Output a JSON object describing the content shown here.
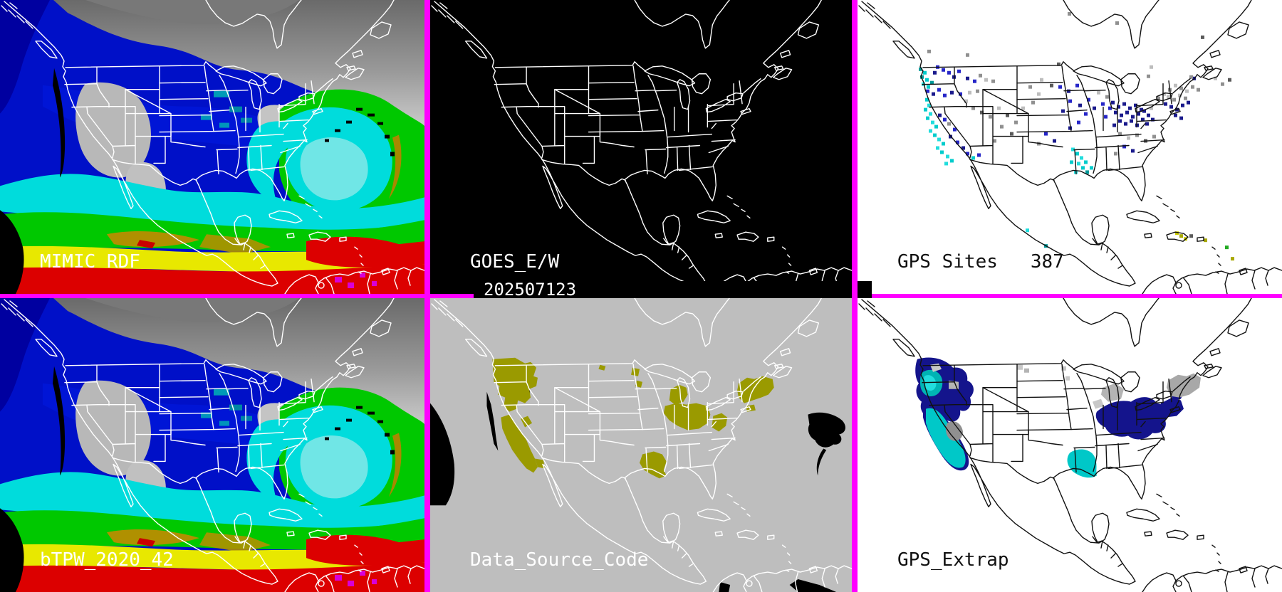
{
  "panels": {
    "mimic": {
      "label": "MIMIC RDF"
    },
    "goes": {
      "label": "GOES_E/W",
      "timestamp": "202507123"
    },
    "gps_sites": {
      "label": "GPS Sites",
      "count": "387"
    },
    "btpw": {
      "label": "bTPW_2020_42"
    },
    "data_source": {
      "label": "Data_Source_Code"
    },
    "gps_extrap": {
      "label": "GPS_Extrap"
    }
  },
  "colors": {
    "divider_magenta": "#ff00ff",
    "goes_background": "#000000",
    "ds_background": "#bebebe",
    "ds_data_fill": "#9a9a00",
    "tpw_deep_blue": "#0010c8",
    "tpw_cyan": "#00dcdc",
    "tpw_green": "#00c800",
    "tpw_yellow": "#e8e800",
    "tpw_red": "#dc0000",
    "tpw_olive": "#a88800",
    "tpw_magenta": "#d800d8",
    "map_line_light": "#ffffff",
    "map_line_dark": "#111111"
  },
  "gps_palette": {
    "g": "#909090",
    "lg": "#bdbdbd",
    "dg": "#5a5a5a",
    "n": "#1a1a8c",
    "b": "#2626c8",
    "c": "#00cccc",
    "bc": "#22dddd",
    "t": "#009999",
    "y": "#cccc00",
    "dy": "#a8a800",
    "gr": "#22aa22"
  },
  "gps_dots": [
    [
      295,
      17,
      "g"
    ],
    [
      482,
      50,
      "dg"
    ],
    [
      98,
      70,
      "g"
    ],
    [
      152,
      75,
      "g"
    ],
    [
      280,
      88,
      "dg"
    ],
    [
      406,
      105,
      "g"
    ],
    [
      470,
      108,
      "n"
    ],
    [
      362,
      30,
      "g"
    ],
    [
      410,
      92,
      "lg"
    ],
    [
      466,
      106,
      "g"
    ],
    [
      500,
      108,
      "lg"
    ],
    [
      510,
      116,
      "g"
    ],
    [
      520,
      110,
      "dg"
    ],
    [
      86,
      95,
      "t"
    ],
    [
      92,
      100,
      "c"
    ],
    [
      88,
      106,
      "t"
    ],
    [
      95,
      110,
      "c"
    ],
    [
      90,
      116,
      "bc"
    ],
    [
      97,
      120,
      "c"
    ],
    [
      102,
      114,
      "t"
    ],
    [
      110,
      92,
      "b"
    ],
    [
      118,
      96,
      "b"
    ],
    [
      106,
      100,
      "n"
    ],
    [
      126,
      100,
      "b"
    ],
    [
      133,
      106,
      "n"
    ],
    [
      140,
      98,
      "b"
    ],
    [
      152,
      108,
      "n"
    ],
    [
      162,
      112,
      "b"
    ],
    [
      170,
      104,
      "g"
    ],
    [
      178,
      110,
      "lg"
    ],
    [
      188,
      112,
      "g"
    ],
    [
      96,
      126,
      "b"
    ],
    [
      104,
      130,
      "n"
    ],
    [
      112,
      124,
      "b"
    ],
    [
      120,
      132,
      "b"
    ],
    [
      130,
      128,
      "n"
    ],
    [
      142,
      130,
      "b"
    ],
    [
      155,
      128,
      "lg"
    ],
    [
      166,
      126,
      "g"
    ],
    [
      95,
      138,
      "c"
    ],
    [
      98,
      146,
      "bc"
    ],
    [
      93,
      152,
      "c"
    ],
    [
      100,
      158,
      "bc"
    ],
    [
      96,
      164,
      "c"
    ],
    [
      103,
      170,
      "bc"
    ],
    [
      108,
      176,
      "c"
    ],
    [
      100,
      182,
      "bc"
    ],
    [
      106,
      188,
      "c"
    ],
    [
      112,
      194,
      "bc"
    ],
    [
      118,
      200,
      "c"
    ],
    [
      110,
      206,
      "bc"
    ],
    [
      116,
      212,
      "c"
    ],
    [
      124,
      218,
      "bc"
    ],
    [
      130,
      224,
      "c"
    ],
    [
      122,
      228,
      "bc"
    ],
    [
      113,
      160,
      "n"
    ],
    [
      120,
      166,
      "b"
    ],
    [
      126,
      172,
      "g"
    ],
    [
      134,
      180,
      "b"
    ],
    [
      128,
      190,
      "n"
    ],
    [
      138,
      198,
      "b"
    ],
    [
      146,
      206,
      "n"
    ],
    [
      152,
      214,
      "b"
    ],
    [
      160,
      220,
      "c"
    ],
    [
      168,
      216,
      "b"
    ],
    [
      150,
      140,
      "lg"
    ],
    [
      160,
      150,
      "g"
    ],
    [
      172,
      156,
      "dg"
    ],
    [
      184,
      162,
      "g"
    ],
    [
      196,
      150,
      "lg"
    ],
    [
      208,
      160,
      "dg"
    ],
    [
      220,
      170,
      "g"
    ],
    [
      200,
      176,
      "g"
    ],
    [
      214,
      186,
      "dg"
    ],
    [
      190,
      196,
      "g"
    ],
    [
      230,
      150,
      "lg"
    ],
    [
      244,
      142,
      "g"
    ],
    [
      252,
      130,
      "lg"
    ],
    [
      240,
      120,
      "g"
    ],
    [
      256,
      110,
      "lg"
    ],
    [
      270,
      118,
      "dg"
    ],
    [
      282,
      120,
      "b"
    ],
    [
      294,
      126,
      "n"
    ],
    [
      306,
      118,
      "b"
    ],
    [
      296,
      140,
      "b"
    ],
    [
      310,
      146,
      "n"
    ],
    [
      322,
      138,
      "b"
    ],
    [
      286,
      154,
      "n"
    ],
    [
      318,
      158,
      "b"
    ],
    [
      330,
      150,
      "n"
    ],
    [
      342,
      144,
      "b"
    ],
    [
      308,
      170,
      "b"
    ],
    [
      296,
      178,
      "n"
    ],
    [
      356,
      142,
      "n"
    ],
    [
      364,
      148,
      "n"
    ],
    [
      372,
      144,
      "n"
    ],
    [
      380,
      150,
      "n"
    ],
    [
      388,
      146,
      "n"
    ],
    [
      396,
      152,
      "n"
    ],
    [
      360,
      156,
      "n"
    ],
    [
      368,
      160,
      "n"
    ],
    [
      376,
      156,
      "n"
    ],
    [
      384,
      162,
      "n"
    ],
    [
      392,
      158,
      "n"
    ],
    [
      400,
      154,
      "n"
    ],
    [
      366,
      168,
      "n"
    ],
    [
      374,
      172,
      "n"
    ],
    [
      382,
      168,
      "n"
    ],
    [
      390,
      174,
      "n"
    ],
    [
      398,
      166,
      "n"
    ],
    [
      406,
      160,
      "n"
    ],
    [
      352,
      150,
      "b"
    ],
    [
      346,
      162,
      "b"
    ],
    [
      358,
      174,
      "n"
    ],
    [
      404,
      172,
      "n"
    ],
    [
      412,
      166,
      "n"
    ],
    [
      410,
      150,
      "lg"
    ],
    [
      348,
      134,
      "g"
    ],
    [
      336,
      128,
      "lg"
    ],
    [
      420,
      136,
      "g"
    ],
    [
      428,
      130,
      "lg"
    ],
    [
      436,
      124,
      "g"
    ],
    [
      444,
      118,
      "lg"
    ],
    [
      452,
      122,
      "g"
    ],
    [
      460,
      126,
      "lg"
    ],
    [
      468,
      120,
      "g"
    ],
    [
      476,
      124,
      "g"
    ],
    [
      434,
      134,
      "lg"
    ],
    [
      442,
      138,
      "g"
    ],
    [
      450,
      132,
      "lg"
    ],
    [
      458,
      136,
      "g"
    ],
    [
      430,
      144,
      "n"
    ],
    [
      438,
      148,
      "n"
    ],
    [
      446,
      152,
      "n"
    ],
    [
      454,
      146,
      "n"
    ],
    [
      462,
      142,
      "n"
    ],
    [
      444,
      160,
      "n"
    ],
    [
      452,
      164,
      "n"
    ],
    [
      366,
      186,
      "g"
    ],
    [
      378,
      192,
      "lg"
    ],
    [
      390,
      188,
      "g"
    ],
    [
      402,
      196,
      "dg"
    ],
    [
      414,
      190,
      "g"
    ],
    [
      372,
      204,
      "b"
    ],
    [
      384,
      210,
      "n"
    ],
    [
      360,
      214,
      "g"
    ],
    [
      300,
      208,
      "bc"
    ],
    [
      306,
      214,
      "c"
    ],
    [
      312,
      220,
      "bc"
    ],
    [
      318,
      226,
      "c"
    ],
    [
      308,
      228,
      "bc"
    ],
    [
      314,
      234,
      "c"
    ],
    [
      320,
      240,
      "t"
    ],
    [
      326,
      234,
      "c"
    ],
    [
      304,
      240,
      "bc"
    ],
    [
      298,
      226,
      "c"
    ],
    [
      262,
      186,
      "b"
    ],
    [
      274,
      196,
      "n"
    ],
    [
      252,
      200,
      "g"
    ],
    [
      236,
      322,
      "bc"
    ],
    [
      262,
      344,
      "t"
    ],
    [
      446,
      326,
      "y"
    ],
    [
      452,
      330,
      "dy"
    ],
    [
      458,
      334,
      "y"
    ],
    [
      466,
      330,
      "dg"
    ],
    [
      486,
      336,
      "dy"
    ],
    [
      516,
      346,
      "gr"
    ],
    [
      524,
      362,
      "dy"
    ]
  ]
}
